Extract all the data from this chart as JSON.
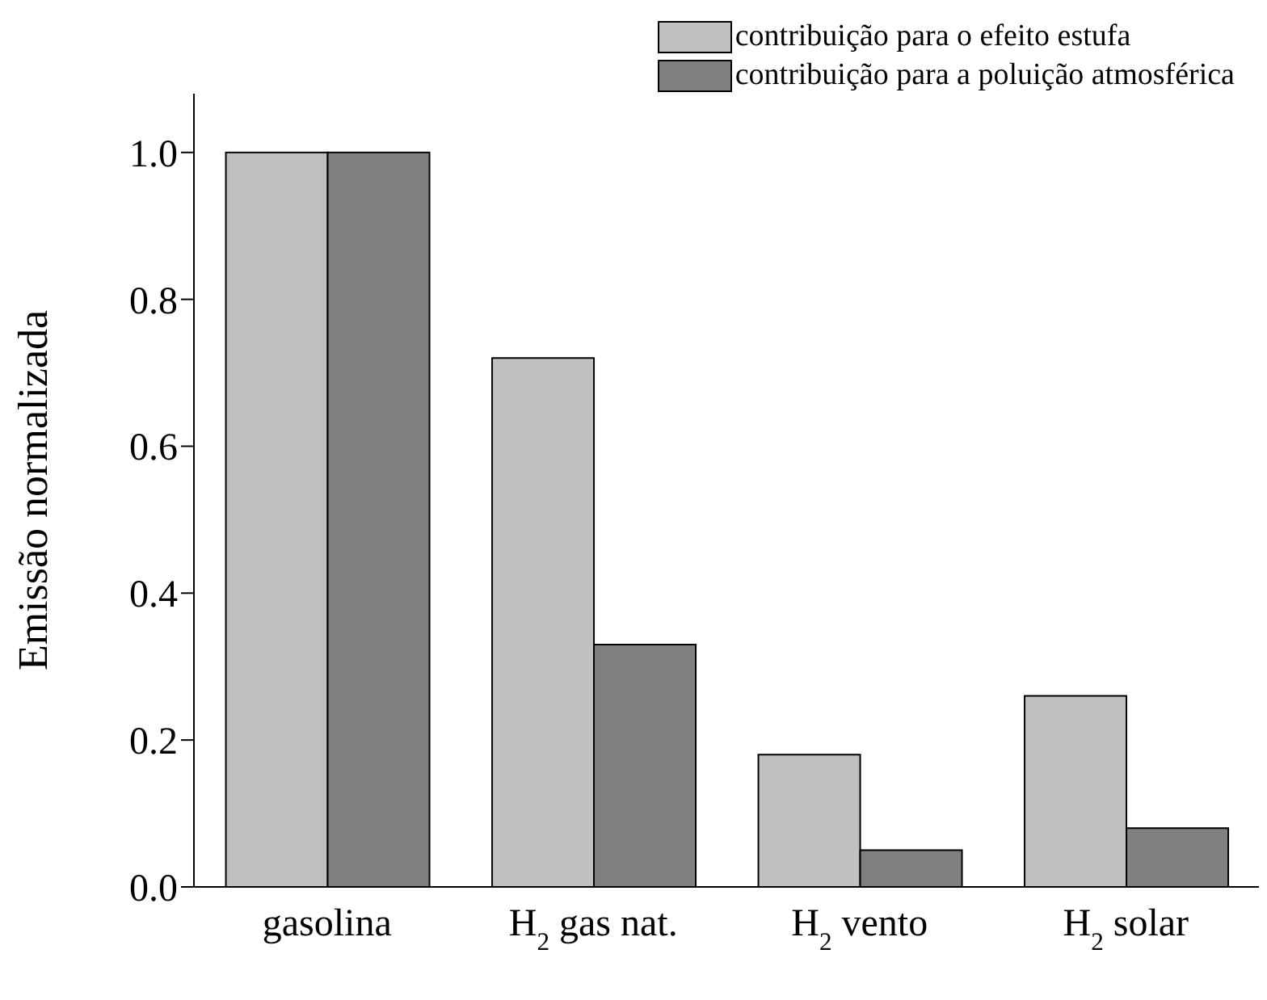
{
  "chart_data": {
    "type": "bar",
    "ylabel": "Emissão normalizada",
    "categories": [
      "gasolina",
      "H$_{2}$ gas nat.",
      "H$_{2}$ vento",
      "H$_{2}$ solar"
    ],
    "series": [
      {
        "name": "contribuição para o efeito estufa",
        "color": "#c0c0c0",
        "values": [
          1.0,
          0.72,
          0.18,
          0.26
        ]
      },
      {
        "name": "contribuição para a poluição atmosférica",
        "color": "#808080",
        "values": [
          1.0,
          0.33,
          0.05,
          0.08
        ]
      }
    ],
    "ylim": [
      0,
      1.08
    ],
    "yticks": [
      {
        "value": 0,
        "label": "0.0"
      },
      {
        "value": 0.2,
        "label": "0.2"
      },
      {
        "value": 0.4,
        "label": "0.4"
      },
      {
        "value": 0.6,
        "label": "0.6"
      },
      {
        "value": 0.8,
        "label": "0.8"
      },
      {
        "value": 1,
        "label": "1.0"
      }
    ],
    "grid": false,
    "legend": "top right"
  }
}
